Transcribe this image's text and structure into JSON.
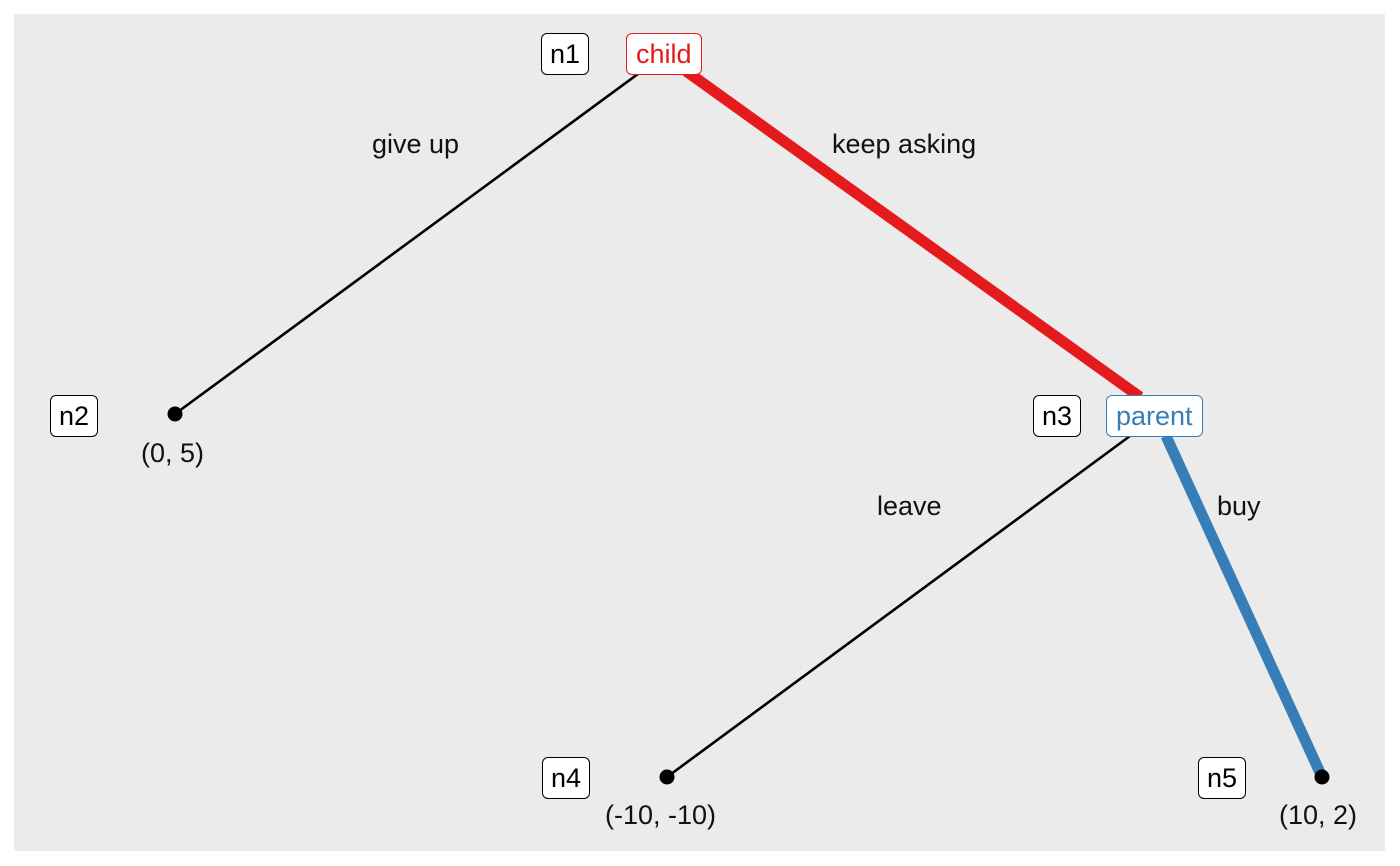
{
  "colors": {
    "background": "#ebebeb",
    "child": "#e41a1c",
    "parent": "#377eb8",
    "plain_edge": "#000000"
  },
  "players": {
    "child": "child",
    "parent": "parent"
  },
  "node_ids": {
    "n1": "n1",
    "n2": "n2",
    "n3": "n3",
    "n4": "n4",
    "n5": "n5"
  },
  "actions": {
    "give_up": "give up",
    "keep_asking": "keep asking",
    "leave": "leave",
    "buy": "buy"
  },
  "payoffs": {
    "n2": "(0, 5)",
    "n4": "(-10, -10)",
    "n5": "(10, 2)"
  }
}
